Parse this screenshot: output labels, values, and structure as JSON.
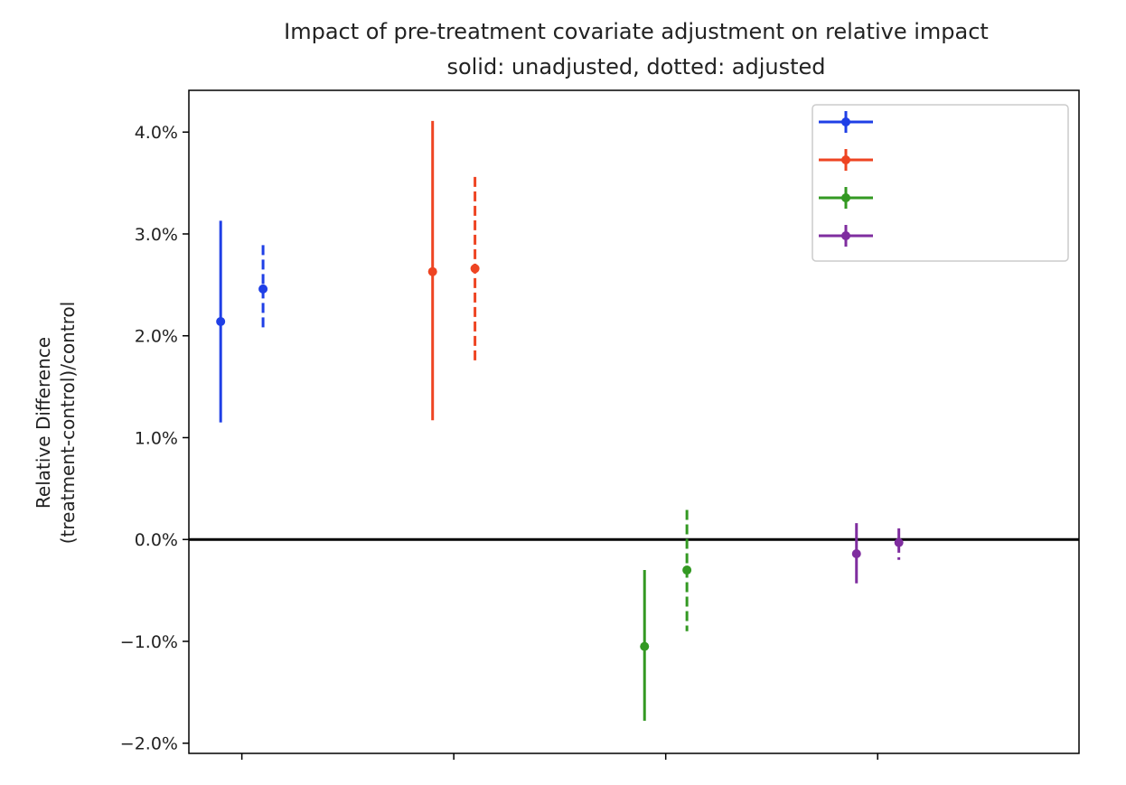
{
  "chart_data": {
    "type": "errorbar",
    "title": "Impact of pre-treatment covariate adjustment on relative impact",
    "subtitle": "solid: unadjusted, dotted: adjusted",
    "ylabel_line1": "Relative Difference",
    "ylabel_line2": "(treatment-control)/control",
    "ylim": [
      -0.021,
      0.0441
    ],
    "xlim": [
      -1.0,
      3.2
    ],
    "ytick_values": [
      -0.02,
      -0.01,
      0.0,
      0.01,
      0.02,
      0.03,
      0.04
    ],
    "ytick_labels": [
      "−2.0%",
      "−1.0%",
      "0.0%",
      "1.0%",
      "2.0%",
      "3.0%",
      "4.0%"
    ],
    "xtick_positions": [
      -0.75,
      0.25,
      1.25,
      2.25
    ],
    "reference_line_y": 0.0,
    "legend_placement": "top-right",
    "grid": false,
    "series": [
      {
        "color": "#1f3fe6",
        "unadjusted": {
          "x": -0.85,
          "y": 0.0214,
          "low": 0.0115,
          "high": 0.0313
        },
        "adjusted": {
          "x": -0.65,
          "y": 0.0246,
          "low": 0.0204,
          "high": 0.0289
        }
      },
      {
        "color": "#ee4422",
        "unadjusted": {
          "x": 0.15,
          "y": 0.0263,
          "low": 0.0117,
          "high": 0.0411
        },
        "adjusted": {
          "x": 0.35,
          "y": 0.0266,
          "low": 0.0175,
          "high": 0.0356
        }
      },
      {
        "color": "#339922",
        "unadjusted": {
          "x": 1.15,
          "y": -0.0105,
          "low": -0.0178,
          "high": -0.003
        },
        "adjusted": {
          "x": 1.35,
          "y": -0.003,
          "low": -0.009,
          "high": 0.0029
        }
      },
      {
        "color": "#7f2d9f",
        "unadjusted": {
          "x": 2.15,
          "y": -0.0014,
          "low": -0.0043,
          "high": 0.0016
        },
        "adjusted": {
          "x": 2.35,
          "y": -0.0003,
          "low": -0.002,
          "high": 0.0011
        }
      }
    ]
  }
}
